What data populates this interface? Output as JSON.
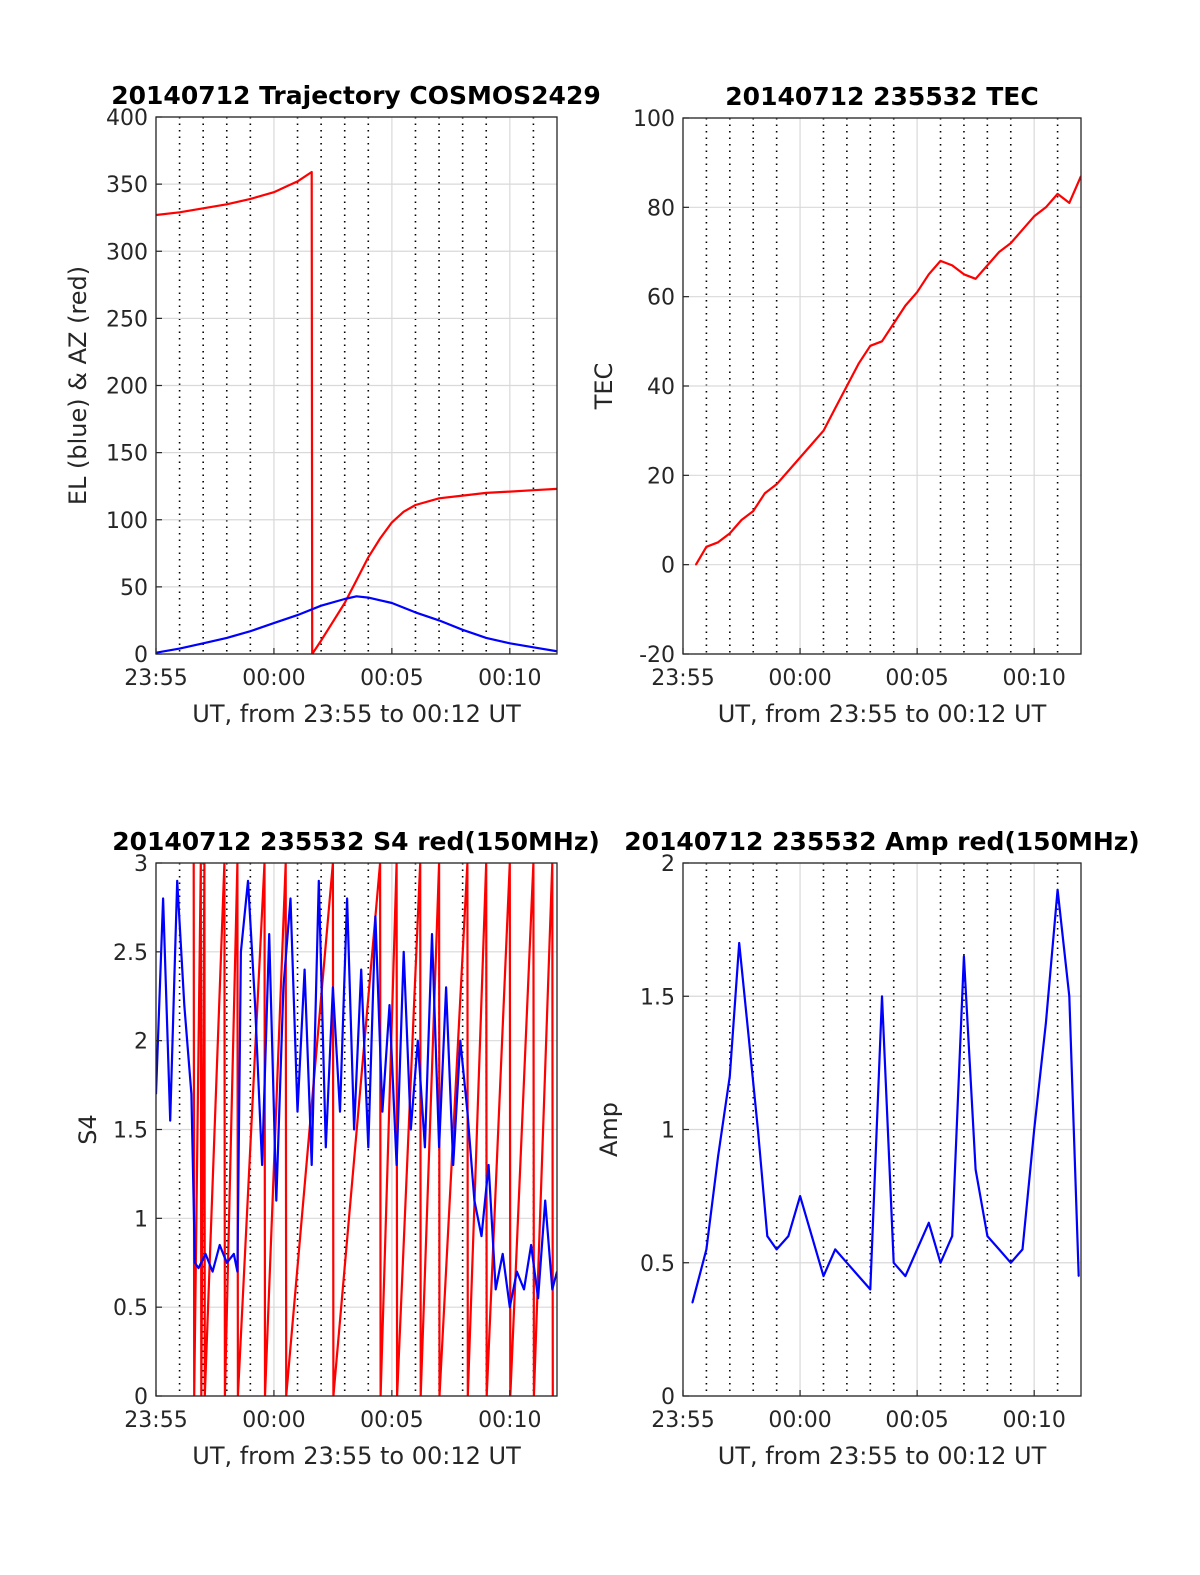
{
  "chart_data": [
    {
      "id": "trajectory",
      "type": "line",
      "title": "20140712 Trajectory COSMOS2429",
      "xlabel": "UT, from 23:55 to 00:12 UT",
      "ylabel": "EL (blue) & AZ (red)",
      "xlim": [
        0,
        17
      ],
      "ylim": [
        0,
        400
      ],
      "xticks": [
        {
          "v": 0,
          "label": "23:55"
        },
        {
          "v": 5,
          "label": "00:00"
        },
        {
          "v": 10,
          "label": "00:05"
        },
        {
          "v": 15,
          "label": "00:10"
        }
      ],
      "yticks": [
        {
          "v": 0,
          "label": "0"
        },
        {
          "v": 50,
          "label": "50"
        },
        {
          "v": 100,
          "label": "100"
        },
        {
          "v": 150,
          "label": "150"
        },
        {
          "v": 200,
          "label": "200"
        },
        {
          "v": 250,
          "label": "250"
        },
        {
          "v": 300,
          "label": "300"
        },
        {
          "v": 350,
          "label": "350"
        },
        {
          "v": 400,
          "label": "400"
        }
      ],
      "grid": true,
      "series": [
        {
          "color": "#ff0000",
          "x": [
            0,
            1,
            2,
            3,
            4,
            5,
            5.5,
            6,
            6.6,
            6.62,
            7,
            7.5,
            8,
            8.5,
            9,
            9.5,
            10,
            10.5,
            11,
            12,
            13,
            14,
            15,
            16,
            17
          ],
          "y": [
            327,
            329,
            332,
            335,
            339,
            344,
            348,
            352,
            359,
            0,
            10,
            24,
            38,
            55,
            72,
            86,
            98,
            106,
            111,
            116,
            118,
            120,
            121,
            122,
            123
          ]
        },
        {
          "color": "#0000ff",
          "x": [
            0,
            1,
            2,
            3,
            4,
            5,
            6,
            7,
            8,
            8.5,
            9,
            10,
            11,
            12,
            13,
            14,
            15,
            16,
            17
          ],
          "y": [
            1,
            4,
            8,
            12,
            17,
            23,
            29,
            36,
            41,
            43,
            42,
            38,
            31,
            25,
            18,
            12,
            8,
            5,
            2
          ]
        }
      ]
    },
    {
      "id": "tec",
      "type": "line",
      "title": "20140712 235532 TEC",
      "xlabel": "UT, from 23:55 to 00:12 UT",
      "ylabel": "TEC",
      "xlim": [
        0,
        17
      ],
      "ylim": [
        -20,
        100
      ],
      "xticks": [
        {
          "v": 0,
          "label": "23:55"
        },
        {
          "v": 5,
          "label": "00:00"
        },
        {
          "v": 10,
          "label": "00:05"
        },
        {
          "v": 15,
          "label": "00:10"
        }
      ],
      "yticks": [
        {
          "v": -20,
          "label": "-20"
        },
        {
          "v": 0,
          "label": "0"
        },
        {
          "v": 20,
          "label": "20"
        },
        {
          "v": 40,
          "label": "40"
        },
        {
          "v": 60,
          "label": "60"
        },
        {
          "v": 80,
          "label": "80"
        },
        {
          "v": 100,
          "label": "100"
        }
      ],
      "grid": true,
      "series": [
        {
          "color": "#ff0000",
          "x": [
            0.55,
            1,
            1.5,
            2,
            2.5,
            3,
            3.5,
            4,
            4.5,
            5,
            5.5,
            6,
            6.5,
            7,
            7.5,
            8,
            8.5,
            9,
            9.5,
            10,
            10.5,
            11,
            11.5,
            12,
            12.5,
            13,
            13.5,
            14,
            14.5,
            15,
            15.5,
            16,
            16.5,
            17
          ],
          "y": [
            0,
            4,
            5,
            7,
            10,
            12,
            16,
            18,
            21,
            24,
            27,
            30,
            35,
            40,
            45,
            49,
            50,
            54,
            58,
            61,
            65,
            68,
            67,
            65,
            64,
            67,
            70,
            72,
            75,
            78,
            80,
            83,
            81,
            87
          ]
        }
      ]
    },
    {
      "id": "s4",
      "type": "line",
      "title": "20140712 235532 S4 red(150MHz)",
      "xlabel": "UT, from 23:55 to 00:12 UT",
      "ylabel": "S4",
      "xlim": [
        0,
        17
      ],
      "ylim": [
        0,
        3
      ],
      "xticks": [
        {
          "v": 0,
          "label": "23:55"
        },
        {
          "v": 5,
          "label": "00:00"
        },
        {
          "v": 10,
          "label": "00:05"
        },
        {
          "v": 15,
          "label": "00:10"
        }
      ],
      "yticks": [
        {
          "v": 0,
          "label": "0"
        },
        {
          "v": 0.5,
          "label": "0.5"
        },
        {
          "v": 1,
          "label": "1"
        },
        {
          "v": 1.5,
          "label": "1.5"
        },
        {
          "v": 2,
          "label": "2"
        },
        {
          "v": 2.5,
          "label": "2.5"
        },
        {
          "v": 3,
          "label": "3"
        }
      ],
      "grid": true,
      "series": [
        {
          "color": "#ff0000",
          "x": [
            1.6,
            1.62,
            1.9,
            1.92,
            2.05,
            2.07,
            2.9,
            2.92,
            3.45,
            3.47,
            4.6,
            4.62,
            5.5,
            5.52,
            7.5,
            7.52,
            9.5,
            9.52,
            10.2,
            10.22,
            11.2,
            11.22,
            12.0,
            12.02,
            13.2,
            13.22,
            14.0,
            14.02,
            15.0,
            15.02,
            16.0,
            16.02,
            16.8,
            16.82
          ],
          "y": [
            3,
            0,
            3,
            0,
            3,
            0,
            3,
            0,
            3,
            0,
            3,
            0,
            3,
            0,
            3,
            0,
            3,
            0,
            3,
            0,
            3,
            0,
            3,
            0,
            3,
            0,
            3,
            0,
            3,
            0,
            3,
            0,
            3,
            0
          ]
        },
        {
          "color": "#0000ff",
          "x": [
            0,
            0.3,
            0.6,
            0.9,
            1.2,
            1.5,
            1.65,
            1.8,
            2.1,
            2.4,
            2.7,
            3.0,
            3.3,
            3.45,
            3.6,
            3.9,
            4.2,
            4.5,
            4.8,
            5.1,
            5.4,
            5.7,
            6.0,
            6.3,
            6.6,
            6.9,
            7.2,
            7.5,
            7.8,
            8.1,
            8.4,
            8.7,
            9.0,
            9.3,
            9.6,
            9.9,
            10.2,
            10.5,
            10.8,
            11.1,
            11.4,
            11.7,
            12.0,
            12.3,
            12.6,
            12.9,
            13.2,
            13.5,
            13.8,
            14.1,
            14.4,
            14.7,
            15.0,
            15.3,
            15.6,
            15.9,
            16.2,
            16.5,
            16.8,
            17
          ],
          "y": [
            1.7,
            2.8,
            1.55,
            2.9,
            2.2,
            1.7,
            0.75,
            0.72,
            0.8,
            0.7,
            0.85,
            0.75,
            0.8,
            0.7,
            2.5,
            2.9,
            2.2,
            1.3,
            2.6,
            1.1,
            2.3,
            2.8,
            1.6,
            2.4,
            1.3,
            2.9,
            1.4,
            2.3,
            1.6,
            2.8,
            1.5,
            2.4,
            1.4,
            2.7,
            1.6,
            2.2,
            1.3,
            2.5,
            1.5,
            2.0,
            1.4,
            2.6,
            1.4,
            2.3,
            1.3,
            2.0,
            1.6,
            1.1,
            0.9,
            1.3,
            0.6,
            0.8,
            0.5,
            0.7,
            0.6,
            0.85,
            0.55,
            1.1,
            0.6,
            0.7
          ]
        }
      ]
    },
    {
      "id": "amp",
      "type": "line",
      "title": "20140712 235532 Amp red(150MHz)",
      "xlabel": "UT, from 23:55 to 00:12 UT",
      "ylabel": "Amp",
      "xlim": [
        0,
        17
      ],
      "ylim": [
        0,
        2
      ],
      "xticks": [
        {
          "v": 0,
          "label": "23:55"
        },
        {
          "v": 5,
          "label": "00:00"
        },
        {
          "v": 10,
          "label": "00:05"
        },
        {
          "v": 15,
          "label": "00:10"
        }
      ],
      "yticks": [
        {
          "v": 0,
          "label": "0"
        },
        {
          "v": 0.5,
          "label": "0.5"
        },
        {
          "v": 1,
          "label": "1"
        },
        {
          "v": 1.5,
          "label": "1.5"
        },
        {
          "v": 2,
          "label": "2"
        }
      ],
      "grid": true,
      "series": [
        {
          "color": "#0000ff",
          "x": [
            0.4,
            1.0,
            1.5,
            2.0,
            2.4,
            2.8,
            3.2,
            3.6,
            4.0,
            4.5,
            5.0,
            5.5,
            6.0,
            6.5,
            7.0,
            7.5,
            8.0,
            8.5,
            9.0,
            9.5,
            10.0,
            10.5,
            11.0,
            11.5,
            12.0,
            12.5,
            13.0,
            13.5,
            14.0,
            14.5,
            15.0,
            15.5,
            16.0,
            16.5,
            16.9
          ],
          "y": [
            0.35,
            0.55,
            0.9,
            1.2,
            1.7,
            1.35,
            1.0,
            0.6,
            0.55,
            0.6,
            0.75,
            0.6,
            0.45,
            0.55,
            0.5,
            0.45,
            0.4,
            1.5,
            0.5,
            0.45,
            0.55,
            0.65,
            0.5,
            0.6,
            1.65,
            0.85,
            0.6,
            0.55,
            0.5,
            0.55,
            1.0,
            1.4,
            1.9,
            1.5,
            0.45
          ]
        }
      ]
    }
  ]
}
